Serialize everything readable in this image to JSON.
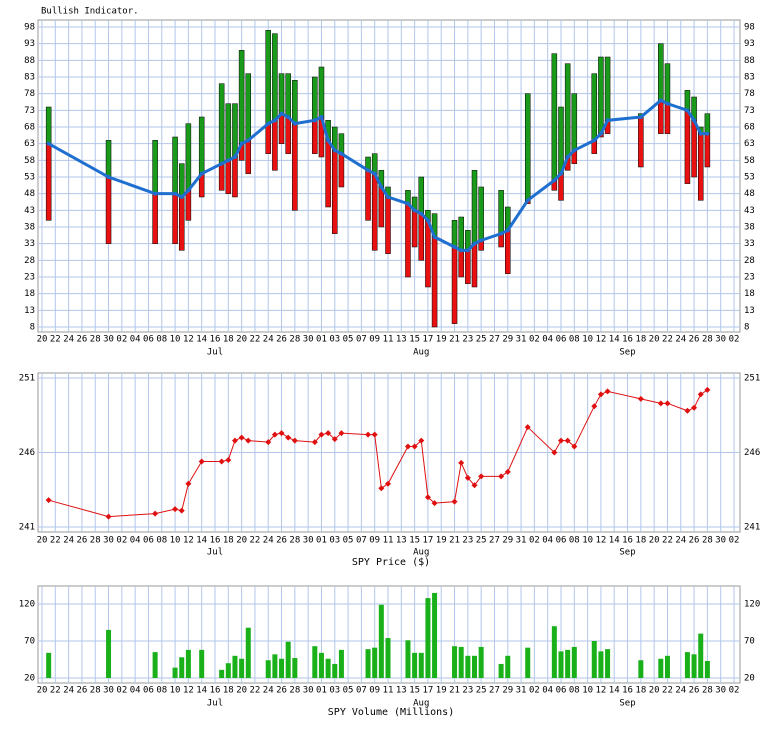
{
  "x_axis": {
    "xlim": [
      0,
      104
    ],
    "xticks": [
      {
        "value": 0,
        "label": "20"
      },
      {
        "value": 2,
        "label": "22"
      },
      {
        "value": 4,
        "label": "24"
      },
      {
        "value": 6,
        "label": "26"
      },
      {
        "value": 8,
        "label": "28"
      },
      {
        "value": 10,
        "label": "30"
      },
      {
        "value": 12,
        "label": "02"
      },
      {
        "value": 14,
        "label": "04"
      },
      {
        "value": 16,
        "label": "06"
      },
      {
        "value": 18,
        "label": "08"
      },
      {
        "value": 20,
        "label": "10"
      },
      {
        "value": 22,
        "label": "12"
      },
      {
        "value": 24,
        "label": "14"
      },
      {
        "value": 26,
        "label": "16"
      },
      {
        "value": 28,
        "label": "18"
      },
      {
        "value": 30,
        "label": "20"
      },
      {
        "value": 32,
        "label": "22"
      },
      {
        "value": 34,
        "label": "24"
      },
      {
        "value": 36,
        "label": "26"
      },
      {
        "value": 38,
        "label": "28"
      },
      {
        "value": 40,
        "label": "30"
      },
      {
        "value": 42,
        "label": "01"
      },
      {
        "value": 44,
        "label": "03"
      },
      {
        "value": 46,
        "label": "05"
      },
      {
        "value": 48,
        "label": "07"
      },
      {
        "value": 50,
        "label": "09"
      },
      {
        "value": 52,
        "label": "11"
      },
      {
        "value": 54,
        "label": "13"
      },
      {
        "value": 56,
        "label": "15"
      },
      {
        "value": 58,
        "label": "17"
      },
      {
        "value": 60,
        "label": "19"
      },
      {
        "value": 62,
        "label": "21"
      },
      {
        "value": 64,
        "label": "23"
      },
      {
        "value": 66,
        "label": "25"
      },
      {
        "value": 68,
        "label": "27"
      },
      {
        "value": 70,
        "label": "29"
      },
      {
        "value": 72,
        "label": "31"
      },
      {
        "value": 74,
        "label": "02"
      },
      {
        "value": 76,
        "label": "04"
      },
      {
        "value": 78,
        "label": "06"
      },
      {
        "value": 80,
        "label": "08"
      },
      {
        "value": 82,
        "label": "10"
      },
      {
        "value": 84,
        "label": "12"
      },
      {
        "value": 86,
        "label": "14"
      },
      {
        "value": 88,
        "label": "16"
      },
      {
        "value": 90,
        "label": "18"
      },
      {
        "value": 92,
        "label": "20"
      },
      {
        "value": 94,
        "label": "22"
      },
      {
        "value": 96,
        "label": "24"
      },
      {
        "value": 98,
        "label": "26"
      },
      {
        "value": 100,
        "label": "28"
      },
      {
        "value": 102,
        "label": "30"
      },
      {
        "value": 104,
        "label": "02"
      }
    ],
    "months": [
      {
        "value": 26,
        "label": "Jul"
      },
      {
        "value": 57,
        "label": "Aug"
      },
      {
        "value": 88,
        "label": "Sep"
      }
    ]
  },
  "chart_data": [
    {
      "type": "indicator",
      "title": "Bullish Indicator.",
      "x": [
        1,
        10,
        17,
        20,
        21,
        22,
        24,
        27,
        28,
        29,
        30,
        31,
        34,
        35,
        36,
        37,
        38,
        41,
        42,
        43,
        44,
        45,
        49,
        50,
        51,
        52,
        55,
        56,
        57,
        58,
        59,
        62,
        63,
        64,
        65,
        66,
        69,
        70,
        73,
        77,
        78,
        79,
        80,
        83,
        84,
        85,
        90,
        93,
        94,
        97,
        98,
        99,
        100
      ],
      "high": [
        74,
        64,
        64,
        65,
        57,
        69,
        71,
        81,
        75,
        75,
        91,
        84,
        97,
        96,
        84,
        84,
        82,
        83,
        86,
        70,
        68,
        66,
        59,
        60,
        55,
        50,
        49,
        47,
        53,
        43,
        42,
        40,
        41,
        37,
        55,
        50,
        49,
        44,
        78,
        90,
        74,
        87,
        78,
        84,
        89,
        89,
        72,
        93,
        87,
        79,
        77,
        68,
        72
      ],
      "low": [
        40,
        33,
        33,
        33,
        31,
        40,
        47,
        49,
        48,
        47,
        58,
        54,
        60,
        55,
        63,
        60,
        43,
        60,
        59,
        44,
        36,
        50,
        40,
        31,
        38,
        30,
        23,
        32,
        28,
        20,
        8,
        9,
        23,
        21,
        20,
        31,
        32,
        24,
        45,
        49,
        46,
        55,
        57,
        60,
        65,
        66,
        56,
        66,
        66,
        51,
        53,
        46,
        56
      ],
      "values": [
        63,
        53,
        48,
        48,
        47,
        49,
        54,
        57,
        58,
        59,
        63,
        64,
        69,
        70,
        72,
        71,
        69,
        70,
        71,
        64,
        61,
        60,
        55,
        54,
        50,
        47,
        45,
        43,
        42,
        40,
        35,
        32,
        31,
        31,
        33,
        34,
        36,
        37,
        46,
        52,
        54,
        59,
        61,
        64,
        66,
        70,
        71,
        76,
        75,
        73,
        70,
        66,
        66
      ],
      "up_color": "#1a9a1a",
      "down_color": "#e81010",
      "color": "#1e6fd0",
      "ylim": [
        8,
        98
      ],
      "yticks": [
        8,
        13,
        18,
        23,
        28,
        33,
        38,
        43,
        48,
        53,
        58,
        63,
        68,
        73,
        78,
        83,
        88,
        93,
        98
      ],
      "grid": true
    },
    {
      "type": "line",
      "xlabel": "SPY Price ($)",
      "x": [
        1,
        10,
        17,
        20,
        21,
        22,
        24,
        27,
        28,
        29,
        30,
        31,
        34,
        35,
        36,
        37,
        38,
        41,
        42,
        43,
        44,
        45,
        49,
        50,
        51,
        52,
        55,
        56,
        57,
        58,
        59,
        62,
        63,
        64,
        65,
        66,
        69,
        70,
        73,
        77,
        78,
        79,
        80,
        83,
        84,
        85,
        90,
        93,
        94,
        97,
        98,
        99,
        100
      ],
      "values": [
        242.8,
        241.7,
        241.9,
        242.2,
        242.1,
        243.9,
        245.4,
        245.4,
        245.5,
        246.8,
        247.0,
        246.8,
        246.7,
        247.2,
        247.3,
        247.0,
        246.8,
        246.7,
        247.2,
        247.3,
        246.9,
        247.3,
        247.2,
        247.2,
        243.6,
        243.9,
        246.4,
        246.4,
        246.8,
        243.0,
        242.6,
        242.7,
        245.3,
        244.3,
        243.8,
        244.4,
        244.4,
        244.7,
        247.7,
        246.0,
        246.8,
        246.8,
        246.4,
        249.1,
        249.9,
        250.1,
        249.6,
        249.3,
        249.3,
        248.8,
        249.0,
        249.9,
        250.2
      ],
      "color": "#e01010",
      "ylim": [
        241,
        251
      ],
      "yticks": [
        241,
        246,
        251
      ],
      "grid": true
    },
    {
      "type": "bar",
      "xlabel": "SPY Volume (Millions)",
      "x": [
        1,
        10,
        17,
        20,
        21,
        22,
        24,
        27,
        28,
        29,
        30,
        31,
        34,
        35,
        36,
        37,
        38,
        41,
        42,
        43,
        44,
        45,
        49,
        50,
        51,
        52,
        55,
        56,
        57,
        58,
        59,
        62,
        63,
        64,
        65,
        66,
        69,
        70,
        73,
        77,
        78,
        79,
        80,
        83,
        84,
        85,
        90,
        93,
        94,
        97,
        98,
        99,
        100
      ],
      "values": [
        54,
        85,
        55,
        34,
        48,
        58,
        58,
        31,
        40,
        50,
        46,
        88,
        44,
        52,
        46,
        69,
        47,
        63,
        54,
        46,
        39,
        58,
        59,
        61,
        119,
        74,
        71,
        54,
        54,
        128,
        135,
        63,
        62,
        50,
        50,
        62,
        39,
        50,
        61,
        90,
        56,
        58,
        62,
        70,
        56,
        59,
        44,
        46,
        50,
        55,
        52,
        80,
        43
      ],
      "color": "#19b019",
      "ylim": [
        20,
        137.6
      ],
      "yticks": [
        20,
        70,
        120
      ],
      "grid": true
    }
  ]
}
